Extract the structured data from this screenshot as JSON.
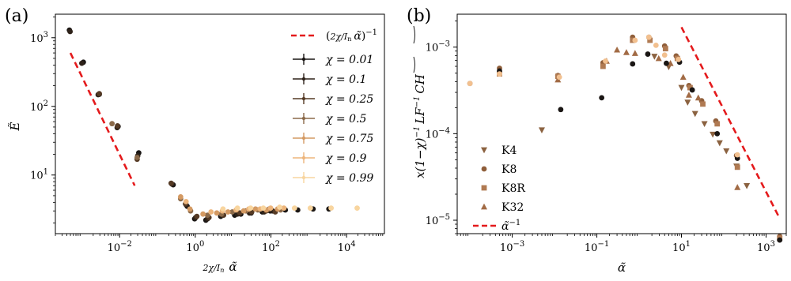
{
  "chart_data": [
    {
      "type": "scatter",
      "panel_label": "(a)",
      "xlabel": "2χ/I_n α̃",
      "ylabel": "Ẽ",
      "xscale": "log",
      "yscale": "log",
      "xlim": [
        0.0002,
        100000
      ],
      "ylim": [
        1.4,
        2200
      ],
      "x_ticks": [
        0.01,
        1,
        100,
        10000
      ],
      "x_tick_labels": [
        "10^-2",
        "10^0",
        "10^2",
        "10^4"
      ],
      "y_ticks": [
        10,
        100,
        1000
      ],
      "y_tick_labels": [
        "10^1",
        "10^2",
        "10^3"
      ],
      "legend_position": "upper right",
      "reference_line": {
        "label": "(2χ/I_n α̃)^-1",
        "color": "#e41a1c",
        "x": [
          0.0005,
          0.025
        ],
        "y": [
          600,
          7
        ]
      },
      "series": [
        {
          "name": "χ = 0.01",
          "color": "#1a1614",
          "points": [
            [
              0.00047,
              1290
            ],
            [
              0.0011,
              440
            ],
            [
              0.0029,
              150
            ],
            [
              0.0091,
              51
            ],
            [
              0.032,
              21
            ],
            [
              0.26,
              7.2
            ],
            [
              0.61,
              3.5
            ],
            [
              0.96,
              2.3
            ],
            [
              1.9,
              2.2
            ],
            [
              4.7,
              2.5
            ],
            [
              11,
              2.6
            ],
            [
              16,
              2.7
            ],
            [
              30,
              2.8
            ],
            [
              59,
              2.9
            ],
            [
              96,
              3.0
            ],
            [
              240,
              3.1
            ],
            [
              510,
              3.1
            ],
            [
              1300,
              3.2
            ],
            [
              3400,
              3.2
            ]
          ]
        },
        {
          "name": "χ = 0.1",
          "color": "#2e2219",
          "points": [
            [
              0.00049,
              1230
            ],
            [
              0.001,
              425
            ],
            [
              0.0027,
              148
            ],
            [
              0.0086,
              49
            ],
            [
              0.03,
              19
            ],
            [
              0.24,
              7.4
            ],
            [
              0.57,
              3.7
            ],
            [
              1.02,
              2.4
            ],
            [
              2.1,
              2.3
            ],
            [
              5.3,
              2.6
            ],
            [
              13,
              2.7
            ],
            [
              27,
              2.8
            ],
            [
              66,
              2.9
            ],
            [
              110,
              3.0
            ]
          ]
        },
        {
          "name": "χ = 0.25",
          "color": "#553a25",
          "points": [
            [
              0.0029,
              153
            ],
            [
              0.0088,
              52
            ],
            [
              0.029,
              17
            ],
            [
              0.23,
              7.6
            ],
            [
              0.55,
              3.8
            ],
            [
              1.1,
              2.5
            ],
            [
              2.3,
              2.4
            ],
            [
              5.6,
              2.6
            ],
            [
              15,
              2.8
            ],
            [
              31,
              2.9
            ],
            [
              75,
              3.0
            ],
            [
              130,
              2.9
            ]
          ]
        },
        {
          "name": "χ = 0.5",
          "color": "#8b6a4a",
          "points": [
            [
              0.0063,
              56
            ],
            [
              0.029,
              18
            ],
            [
              0.41,
              4.5
            ],
            [
              0.75,
              3.0
            ],
            [
              2.1,
              2.6
            ],
            [
              4.9,
              2.7
            ],
            [
              9.5,
              2.9
            ],
            [
              22,
              3.0
            ],
            [
              45,
              3.1
            ],
            [
              90,
              3.2
            ],
            [
              180,
              3.1
            ]
          ]
        },
        {
          "name": "χ = 0.75",
          "color": "#d49a63",
          "points": [
            [
              0.41,
              4.8
            ],
            [
              0.72,
              3.2
            ],
            [
              1.6,
              2.7
            ],
            [
              3.7,
              2.8
            ],
            [
              7.3,
              2.9
            ],
            [
              19,
              3.0
            ],
            [
              39,
              3.2
            ],
            [
              76,
              3.1
            ],
            [
              150,
              3.2
            ]
          ]
        },
        {
          "name": "χ = 0.9",
          "color": "#edb57c",
          "points": [
            [
              0.57,
              4.1
            ],
            [
              2.6,
              2.9
            ],
            [
              5.2,
              3.0
            ],
            [
              12,
              3.1
            ],
            [
              26,
              3.2
            ],
            [
              52,
              3.2
            ],
            [
              98,
              3.3
            ],
            [
              220,
              3.3
            ]
          ]
        },
        {
          "name": "χ = 0.99",
          "color": "#f8d59f",
          "points": [
            [
              5.4,
              3.2
            ],
            [
              13,
              3.3
            ],
            [
              29,
              3.3
            ],
            [
              63,
              3.3
            ],
            [
              170,
              3.4
            ],
            [
              420,
              3.3
            ],
            [
              1100,
              3.3
            ],
            [
              3900,
              3.3
            ],
            [
              19000,
              3.3
            ]
          ]
        }
      ]
    },
    {
      "type": "scatter",
      "panel_label": "(b)",
      "xlabel": "α̃",
      "ylabel": "x(1−χ)^−1 LF^−1 CH",
      "xscale": "log",
      "yscale": "log",
      "xlim": [
        5e-05,
        3000
      ],
      "ylim": [
        7e-06,
        0.0024
      ],
      "x_ticks": [
        0.001,
        0.1,
        10,
        1000
      ],
      "x_tick_labels": [
        "10^-3",
        "10^-1",
        "10^1",
        "10^3"
      ],
      "y_ticks": [
        1e-05,
        0.0001,
        0.001
      ],
      "y_tick_labels": [
        "10^-5",
        "10^-4",
        "10^-3"
      ],
      "legend_position": "lower left",
      "reference_line": {
        "label": "α̃^-1",
        "color": "#e41a1c",
        "x": [
          10,
          2000
        ],
        "y": [
          0.0017,
          1.1e-05
        ]
      },
      "series": [
        {
          "name": "K4",
          "marker": "triangle-down",
          "color": "#8b6240",
          "points": [
            [
              0.005,
              0.00011
            ],
            [
              2.3,
              0.00078
            ],
            [
              5,
              0.00059
            ],
            [
              10,
              0.00034
            ],
            [
              14,
              0.00023
            ],
            [
              21,
              0.00017
            ],
            [
              35,
              0.00013
            ],
            [
              55,
              9.8e-05
            ],
            [
              80,
              7.8e-05
            ],
            [
              115,
              6.3e-05
            ],
            [
              200,
              4.2e-05
            ],
            [
              350,
              2.5e-05
            ]
          ]
        },
        {
          "name": "K8",
          "marker": "circle",
          "color": "#8f5e3a",
          "points": [
            [
              0.0001,
              0.00038
            ],
            [
              0.0005,
              0.00057
            ],
            [
              0.012,
              0.00047
            ],
            [
              0.14,
              0.00066
            ],
            [
              0.7,
              0.0013
            ],
            [
              1.7,
              0.0013
            ],
            [
              4,
              0.00103
            ],
            [
              7.5,
              0.00079
            ],
            [
              15,
              0.00036
            ],
            [
              30,
              0.00024
            ],
            [
              65,
              0.00014
            ],
            [
              200,
              5.6e-05
            ],
            [
              2100,
              6.5e-06
            ]
          ]
        },
        {
          "name": "K8R",
          "marker": "square",
          "color": "#b07a52",
          "points": [
            [
              0.0005,
              0.00049
            ],
            [
              0.012,
              0.00046
            ],
            [
              0.14,
              0.0006
            ],
            [
              0.7,
              0.0012
            ],
            [
              1.8,
              0.0012
            ],
            [
              4.2,
              0.00096
            ],
            [
              8,
              0.00074
            ],
            [
              16,
              0.00034
            ],
            [
              32,
              0.00022
            ],
            [
              70,
              0.00013
            ],
            [
              210,
              4.1e-05
            ],
            [
              2100,
              6.2e-06
            ]
          ]
        },
        {
          "name": "K32",
          "marker": "triangle-up",
          "color": "#a26b45",
          "points": [
            [
              0.012,
              0.00042
            ],
            [
              0.17,
              0.00069
            ],
            [
              0.3,
              0.00093
            ],
            [
              0.5,
              0.00087
            ],
            [
              0.8,
              0.00085
            ],
            [
              2.9,
              0.00074
            ],
            [
              5.5,
              0.00065
            ],
            [
              11,
              0.00045
            ],
            [
              15,
              0.00028
            ],
            [
              25,
              0.00026
            ],
            [
              210,
              2.4e-05
            ]
          ]
        },
        {
          "name": "",
          "marker": "circle",
          "color": "#1a1614",
          "points": [
            [
              0.0005,
              0.00053
            ],
            [
              0.014,
              0.00019
            ],
            [
              0.13,
              0.00026
            ],
            [
              0.7,
              0.00064
            ],
            [
              1.6,
              0.00083
            ],
            [
              4.4,
              0.00065
            ],
            [
              9,
              0.00067
            ],
            [
              18,
              0.00032
            ],
            [
              70,
              0.0001
            ],
            [
              210,
              5.2e-05
            ],
            [
              2100,
              5.9e-06
            ]
          ]
        },
        {
          "name": "",
          "marker": "circle",
          "color": "#f2c08f",
          "points": [
            [
              0.0001,
              0.00038
            ],
            [
              0.0005,
              0.00049
            ],
            [
              0.013,
              0.00045
            ],
            [
              0.16,
              0.00069
            ],
            [
              0.8,
              0.0012
            ],
            [
              1.7,
              0.0013
            ],
            [
              2.5,
              0.00105
            ],
            [
              4,
              0.00081
            ],
            [
              8.5,
              0.00072
            ],
            [
              210,
              5.7e-05
            ]
          ]
        }
      ]
    }
  ]
}
